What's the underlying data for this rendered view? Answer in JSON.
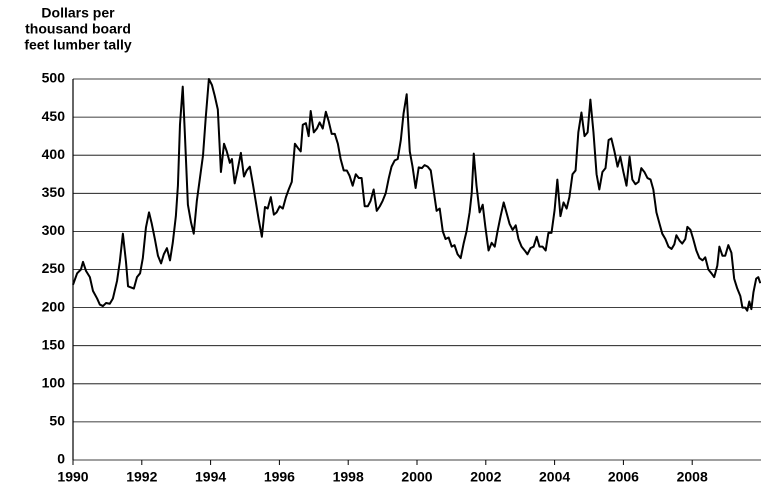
{
  "chart_data": {
    "type": "line",
    "ylabel": [
      "Dollars per",
      "thousand board",
      "feet lumber tally"
    ],
    "x": [
      1990.0,
      1990.12,
      1990.23,
      1990.29,
      1990.38,
      1990.49,
      1990.58,
      1990.7,
      1990.78,
      1990.87,
      1990.96,
      1991.07,
      1991.16,
      1991.28,
      1991.36,
      1991.45,
      1991.54,
      1991.6,
      1991.77,
      1991.86,
      1991.95,
      1992.03,
      1992.12,
      1992.21,
      1992.29,
      1992.38,
      1992.47,
      1992.56,
      1992.64,
      1992.73,
      1992.82,
      1992.9,
      1992.99,
      1993.05,
      1993.11,
      1993.19,
      1993.25,
      1993.34,
      1993.43,
      1993.51,
      1993.6,
      1993.69,
      1993.78,
      1993.86,
      1993.95,
      1994.04,
      1994.12,
      1994.21,
      1994.3,
      1994.39,
      1994.47,
      1994.56,
      1994.62,
      1994.7,
      1994.79,
      1994.88,
      1994.97,
      1995.05,
      1995.14,
      1995.23,
      1995.31,
      1995.4,
      1995.49,
      1995.58,
      1995.66,
      1995.75,
      1995.84,
      1995.92,
      1996.01,
      1996.1,
      1996.19,
      1996.27,
      1996.36,
      1996.45,
      1996.53,
      1996.62,
      1996.68,
      1996.77,
      1996.85,
      1996.91,
      1997.0,
      1997.09,
      1997.17,
      1997.26,
      1997.35,
      1997.43,
      1997.52,
      1997.61,
      1997.7,
      1997.78,
      1997.87,
      1997.96,
      1998.04,
      1998.13,
      1998.22,
      1998.31,
      1998.39,
      1998.48,
      1998.57,
      1998.65,
      1998.74,
      1998.83,
      1998.92,
      1999.0,
      1999.09,
      1999.18,
      1999.26,
      1999.35,
      1999.44,
      1999.53,
      1999.61,
      1999.7,
      1999.79,
      1999.87,
      1999.96,
      2000.05,
      2000.14,
      2000.22,
      2000.31,
      2000.4,
      2000.48,
      2000.57,
      2000.66,
      2000.75,
      2000.83,
      2000.92,
      2001.01,
      2001.09,
      2001.18,
      2001.27,
      2001.36,
      2001.44,
      2001.53,
      2001.59,
      2001.65,
      2001.73,
      2001.82,
      2001.91,
      2001.99,
      2002.08,
      2002.17,
      2002.26,
      2002.34,
      2002.43,
      2002.52,
      2002.6,
      2002.69,
      2002.78,
      2002.87,
      2002.95,
      2003.04,
      2003.13,
      2003.21,
      2003.3,
      2003.39,
      2003.48,
      2003.56,
      2003.65,
      2003.74,
      2003.82,
      2003.91,
      2004.0,
      2004.08,
      2004.17,
      2004.26,
      2004.35,
      2004.43,
      2004.52,
      2004.61,
      2004.69,
      2004.78,
      2004.87,
      2004.96,
      2005.04,
      2005.13,
      2005.22,
      2005.3,
      2005.39,
      2005.48,
      2005.57,
      2005.65,
      2005.74,
      2005.83,
      2005.91,
      2006.0,
      2006.09,
      2006.18,
      2006.26,
      2006.35,
      2006.44,
      2006.52,
      2006.61,
      2006.7,
      2006.79,
      2006.87,
      2006.96,
      2007.05,
      2007.13,
      2007.22,
      2007.31,
      2007.4,
      2007.48,
      2007.54,
      2007.63,
      2007.71,
      2007.8,
      2007.86,
      2007.95,
      2008.03,
      2008.12,
      2008.21,
      2008.3,
      2008.38,
      2008.47,
      2008.56,
      2008.64,
      2008.73,
      2008.79,
      2008.88,
      2008.96,
      2009.05,
      2009.14,
      2009.22,
      2009.31,
      2009.4,
      2009.46,
      2009.54,
      2009.6,
      2009.66,
      2009.72,
      2009.78,
      2009.86,
      2009.92,
      2009.98
    ],
    "series": [
      {
        "color": "#000000",
        "values": [
          230,
          245,
          250,
          260,
          248,
          240,
          222,
          212,
          204,
          202,
          206,
          205,
          212,
          235,
          260,
          297,
          260,
          228,
          225,
          240,
          245,
          265,
          305,
          325,
          310,
          290,
          268,
          258,
          270,
          278,
          262,
          285,
          320,
          360,
          440,
          490,
          430,
          335,
          312,
          297,
          340,
          370,
          400,
          450,
          500,
          492,
          478,
          460,
          378,
          415,
          405,
          390,
          395,
          363,
          382,
          403,
          372,
          380,
          385,
          362,
          340,
          315,
          293,
          332,
          330,
          345,
          322,
          325,
          333,
          330,
          345,
          355,
          365,
          415,
          410,
          405,
          440,
          442,
          425,
          458,
          430,
          435,
          443,
          435,
          457,
          445,
          428,
          428,
          415,
          395,
          380,
          380,
          373,
          360,
          375,
          370,
          370,
          333,
          333,
          340,
          355,
          327,
          333,
          340,
          350,
          370,
          385,
          393,
          395,
          420,
          455,
          480,
          405,
          385,
          357,
          384,
          383,
          387,
          385,
          380,
          355,
          327,
          330,
          300,
          290,
          292,
          280,
          282,
          270,
          265,
          285,
          300,
          325,
          350,
          402,
          360,
          325,
          335,
          305,
          275,
          285,
          280,
          300,
          320,
          338,
          325,
          310,
          302,
          308,
          290,
          280,
          275,
          270,
          278,
          280,
          293,
          280,
          280,
          275,
          298,
          298,
          328,
          368,
          320,
          338,
          330,
          345,
          375,
          380,
          430,
          456,
          425,
          430,
          473,
          430,
          375,
          355,
          378,
          383,
          420,
          422,
          405,
          385,
          398,
          378,
          360,
          398,
          368,
          362,
          365,
          383,
          378,
          370,
          368,
          355,
          325,
          310,
          297,
          290,
          280,
          277,
          283,
          295,
          288,
          284,
          290,
          306,
          302,
          290,
          275,
          265,
          262,
          266,
          250,
          245,
          240,
          255,
          280,
          268,
          268,
          282,
          272,
          238,
          225,
          215,
          200,
          200,
          196,
          208,
          198,
          220,
          238,
          240,
          232
        ]
      }
    ],
    "xlim": [
      1990,
      2010
    ],
    "xticks": [
      1990,
      1992,
      1994,
      1996,
      1998,
      2000,
      2002,
      2004,
      2006,
      2008
    ],
    "ylim": [
      0,
      500
    ],
    "yticks": [
      0,
      50,
      100,
      150,
      200,
      250,
      300,
      350,
      400,
      450,
      500
    ],
    "grid": true
  }
}
